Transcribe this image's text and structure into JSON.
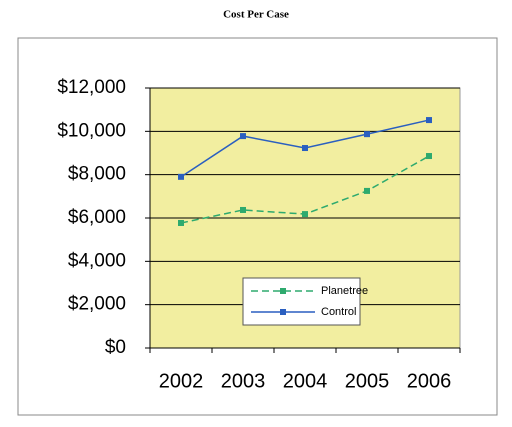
{
  "chart_data": {
    "type": "line",
    "title": "Cost Per Case",
    "categories": [
      "2002",
      "2003",
      "2004",
      "2005",
      "2006"
    ],
    "series": [
      {
        "name": "Planetree",
        "color": "#2eaa6e",
        "dashed": true,
        "values": [
          5770,
          6370,
          6180,
          7250,
          8860
        ]
      },
      {
        "name": "Control",
        "color": "#2a5fc0",
        "dashed": false,
        "values": [
          7900,
          9780,
          9230,
          9870,
          10520
        ]
      }
    ],
    "ylim": [
      0,
      12000
    ],
    "yticks": [
      {
        "value": 0,
        "label": "$0"
      },
      {
        "value": 2000,
        "label": "$2,000"
      },
      {
        "value": 4000,
        "label": "$4,000"
      },
      {
        "value": 6000,
        "label": "$6,000"
      },
      {
        "value": 8000,
        "label": "$8,000"
      },
      {
        "value": 10000,
        "label": "$10,000"
      },
      {
        "value": 12000,
        "label": "$12,000"
      }
    ],
    "grid": true,
    "plot_background": "#f2eea0",
    "legend": "bottom-center"
  }
}
